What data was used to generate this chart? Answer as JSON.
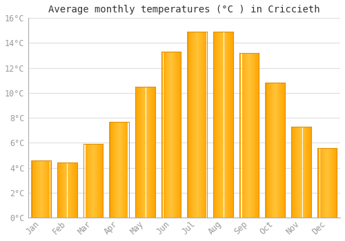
{
  "title": "Average monthly temperatures (°C ) in Criccieth",
  "months": [
    "Jan",
    "Feb",
    "Mar",
    "Apr",
    "May",
    "Jun",
    "Jul",
    "Aug",
    "Sep",
    "Oct",
    "Nov",
    "Dec"
  ],
  "temperatures": [
    4.6,
    4.4,
    5.9,
    7.7,
    10.5,
    13.3,
    14.9,
    14.9,
    13.2,
    10.8,
    7.3,
    5.6
  ],
  "bar_color_main": "#FFA500",
  "bar_color_light": "#FFD050",
  "bar_color_edge": "#E09000",
  "ylim": [
    0,
    16
  ],
  "yticks": [
    0,
    2,
    4,
    6,
    8,
    10,
    12,
    14,
    16
  ],
  "background_color": "#FFFFFF",
  "grid_color": "#DDDDDD",
  "title_fontsize": 10,
  "tick_fontsize": 8.5,
  "tick_color": "#999999",
  "font_family": "monospace",
  "bar_width": 0.75
}
